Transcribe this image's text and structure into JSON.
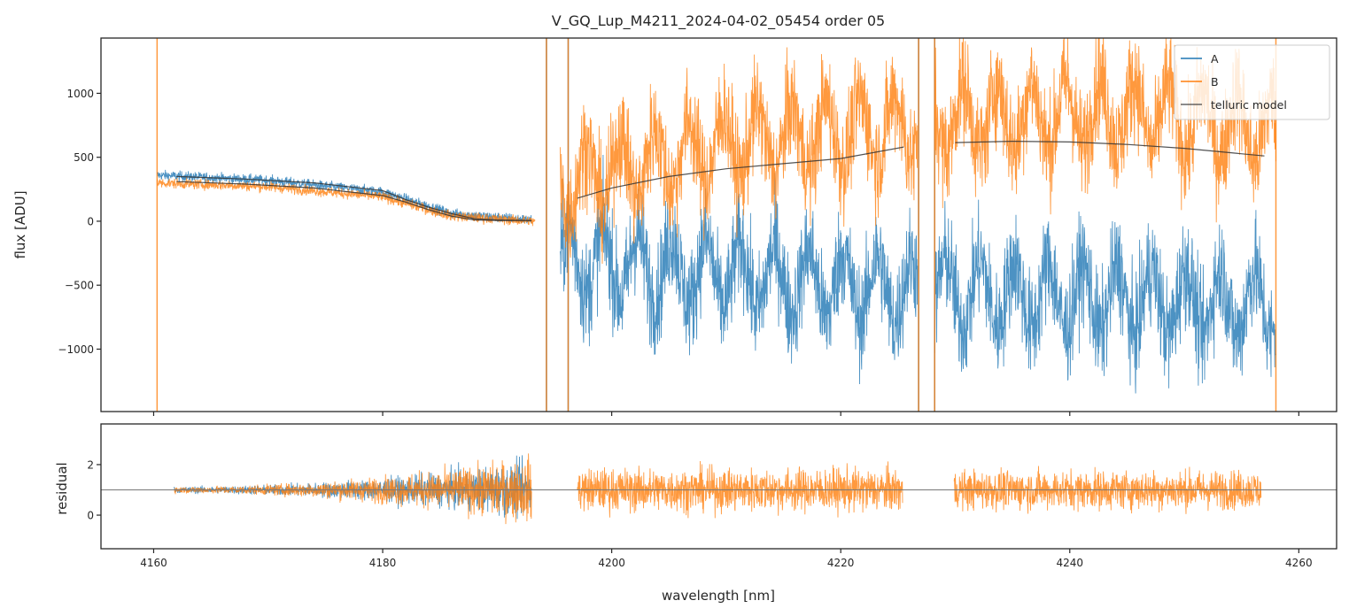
{
  "chart_data": [
    {
      "id": "flux-panel",
      "type": "line",
      "title": "V_GQ_Lup_M4211_2024-04-02_05454  order 05",
      "xlabel": "",
      "ylabel": "flux [ADU]",
      "xlim": [
        4155.4,
        4263.3
      ],
      "ylim": [
        -1488,
        1432
      ],
      "xticks": [
        4160,
        4180,
        4200,
        4220,
        4240,
        4260
      ],
      "xtick_labels_shown": false,
      "yticks": [
        1000,
        500,
        0,
        -500,
        -1000
      ],
      "ytick_labels": [
        "1000",
        "500",
        "0",
        "−500",
        "−1000"
      ],
      "grid": false,
      "legend": {
        "placement": "top-right",
        "entries": [
          {
            "label": "A",
            "color": "#1f77b4"
          },
          {
            "label": "B",
            "color": "#ff7f0e"
          },
          {
            "label": "telluric model",
            "color": "#333333"
          }
        ]
      },
      "series": [
        {
          "name": "A",
          "color": "#1f77b4",
          "description": "noisy spectrum, clipped outside axes",
          "segments": [
            {
              "x_range": [
                4160.3,
                4193.0
              ],
              "trend": [
                [
                  4160.3,
                  360
                ],
                [
                  4170,
                  320
                ],
                [
                  4180,
                  230
                ],
                [
                  4186,
                  60
                ],
                [
                  4193,
                  10
                ]
              ],
              "noise": 40
            },
            {
              "x_range": [
                4195.5,
                4226.7
              ],
              "trend": [
                [
                  4195.5,
                  -300
                ],
                [
                  4210,
                  -420
                ],
                [
                  4226.7,
                  -550
                ]
              ],
              "noise": 420
            },
            {
              "x_range": [
                4228.2,
                4258.0
              ],
              "trend": [
                [
                  4228.2,
                  -550
                ],
                [
                  4245,
                  -620
                ],
                [
                  4258,
                  -650
                ]
              ],
              "noise": 430
            }
          ],
          "spikes_x": [
            4194.3,
            4196.2,
            4226.8,
            4228.2
          ]
        },
        {
          "name": "B",
          "color": "#ff7f0e",
          "description": "noisy spectrum, clipped outside axes",
          "segments": [
            {
              "x_range": [
                4160.3,
                4193.3
              ],
              "trend": [
                [
                  4160.3,
                  300
                ],
                [
                  4170,
                  270
                ],
                [
                  4180,
                  190
                ],
                [
                  4186,
                  40
                ],
                [
                  4193,
                  0
                ]
              ],
              "noise": 40
            },
            {
              "x_range": [
                4195.5,
                4226.7
              ],
              "trend": [
                [
                  4195.5,
                  300
                ],
                [
                  4210,
                  600
                ],
                [
                  4226.7,
                  750
                ]
              ],
              "noise": 420
            },
            {
              "x_range": [
                4228.2,
                4258.0
              ],
              "trend": [
                [
                  4228.2,
                  800
                ],
                [
                  4245,
                  850
                ],
                [
                  4258,
                  700
                ]
              ],
              "noise": 430
            }
          ],
          "spikes_x": [
            4160.3,
            4194.3,
            4196.2,
            4226.8,
            4228.2,
            4258.0
          ]
        },
        {
          "name": "telluric model",
          "color": "#333333",
          "segments": [
            {
              "x": [
                4162,
                4168,
                4174,
                4180,
                4182,
                4184,
                4186,
                4188,
                4190,
                4193
              ],
              "y": [
                350,
                330,
                300,
                240,
                170,
                110,
                60,
                20,
                10,
                5
              ]
            },
            {
              "x": [
                4162,
                4168,
                4174,
                4180,
                4182,
                4184,
                4186,
                4188,
                4190,
                4193
              ],
              "y": [
                310,
                290,
                260,
                200,
                150,
                90,
                40,
                10,
                5,
                5
              ]
            },
            {
              "x": [
                4197,
                4200,
                4205,
                4210,
                4215,
                4220,
                4225.5
              ],
              "y": [
                180,
                260,
                350,
                410,
                450,
                490,
                580
              ]
            },
            {
              "x": [
                4230,
                4235,
                4240,
                4245,
                4250,
                4257
              ],
              "y": [
                615,
                625,
                620,
                600,
                570,
                510
              ]
            }
          ]
        }
      ]
    },
    {
      "id": "residual-panel",
      "type": "line",
      "title": "",
      "xlabel": "wavelength [nm]",
      "ylabel": "residual",
      "xlim": [
        4155.4,
        4263.3
      ],
      "ylim": [
        -1.33,
        3.61
      ],
      "xticks": [
        4160,
        4180,
        4200,
        4220,
        4240,
        4260
      ],
      "xtick_labels": [
        "4160",
        "4180",
        "4200",
        "4220",
        "4240",
        "4260"
      ],
      "yticks": [
        2,
        0
      ],
      "ytick_labels": [
        "2",
        "0"
      ],
      "reference_line": {
        "y": 1,
        "color": "#777777"
      },
      "grid": false,
      "series": [
        {
          "name": "A",
          "color": "#1f77b4",
          "segments": [
            {
              "x_range": [
                4161.8,
                4193.0
              ],
              "center": 1,
              "noise_start": 0.15,
              "noise_end": 1.3
            }
          ]
        },
        {
          "name": "B",
          "color": "#ff7f0e",
          "segments": [
            {
              "x_range": [
                4161.8,
                4193.0
              ],
              "center": 1,
              "noise_start": 0.15,
              "noise_end": 1.5
            },
            {
              "x_range": [
                4197.0,
                4225.4
              ],
              "center": 1,
              "noise_start": 1.0,
              "noise_end": 1.0
            },
            {
              "x_range": [
                4229.9,
                4256.7
              ],
              "center": 1,
              "noise_start": 0.9,
              "noise_end": 0.9
            }
          ]
        }
      ]
    }
  ]
}
